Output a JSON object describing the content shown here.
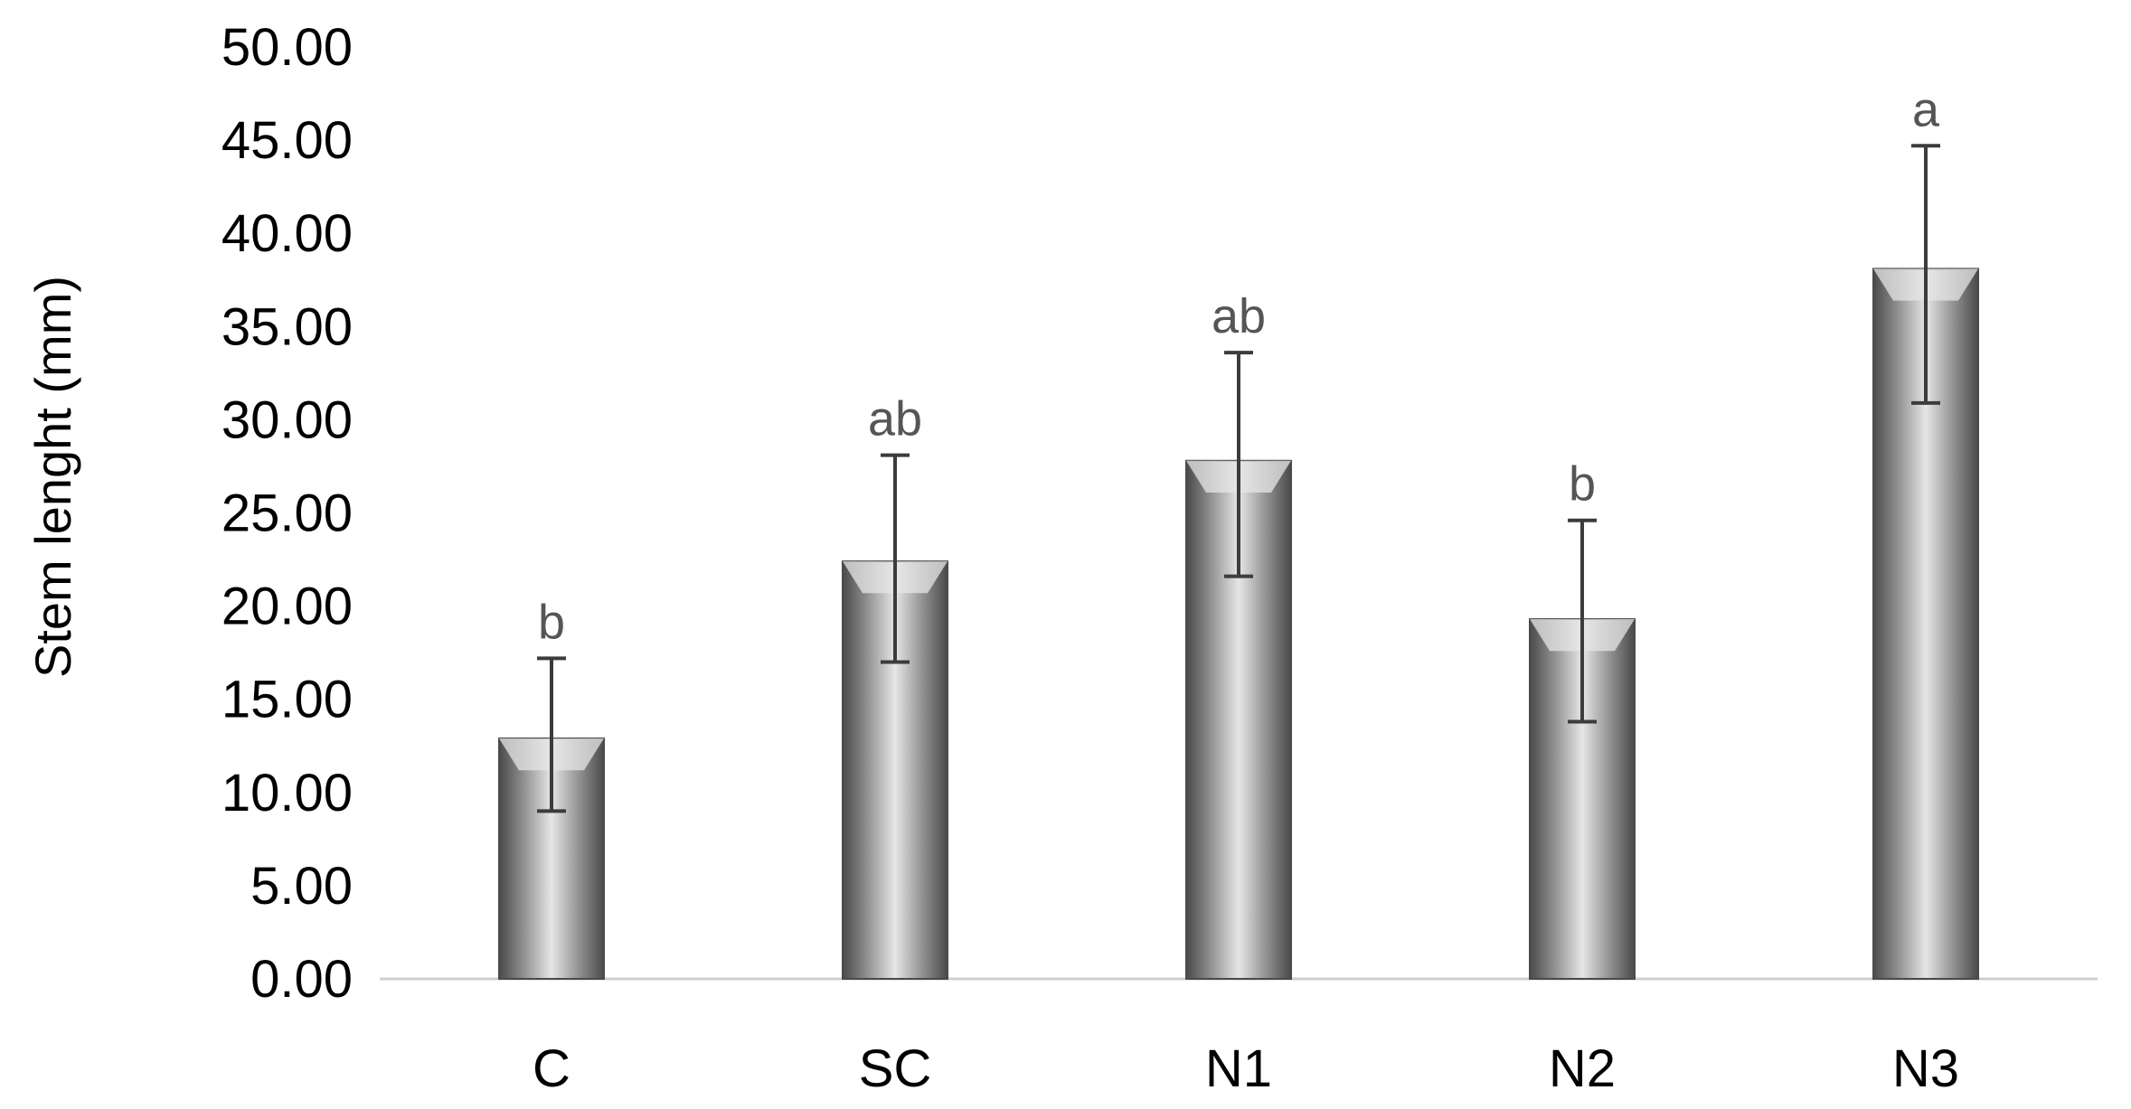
{
  "chart_data": {
    "type": "bar",
    "title": "",
    "xlabel": "",
    "ylabel": "Stem lenght (mm)",
    "ylim": [
      0,
      50
    ],
    "ytick_step": 5,
    "ytick_labels": [
      "0.00",
      "5.00",
      "10.00",
      "15.00",
      "20.00",
      "25.00",
      "30.00",
      "35.00",
      "40.00",
      "45.00",
      "50.00"
    ],
    "grid": false,
    "legend": "none",
    "categories": [
      "C",
      "SC",
      "N1",
      "N2",
      "N3"
    ],
    "values": [
      12.9,
      22.4,
      27.8,
      19.3,
      38.1
    ],
    "error_low": [
      9.0,
      17.0,
      21.6,
      13.8,
      30.9
    ],
    "error_high": [
      17.2,
      28.1,
      33.6,
      24.6,
      44.7
    ],
    "significance_labels": [
      "b",
      "ab",
      "ab",
      "b",
      "a"
    ],
    "colors": {
      "bar_dark": "#4a4a4a",
      "bar_mid": "#8c8c8c",
      "bar_light": "#e6e6e6",
      "error_bar": "#3c3c3c",
      "baseline": "#cfcfcf",
      "significance_text": "#555555"
    }
  }
}
